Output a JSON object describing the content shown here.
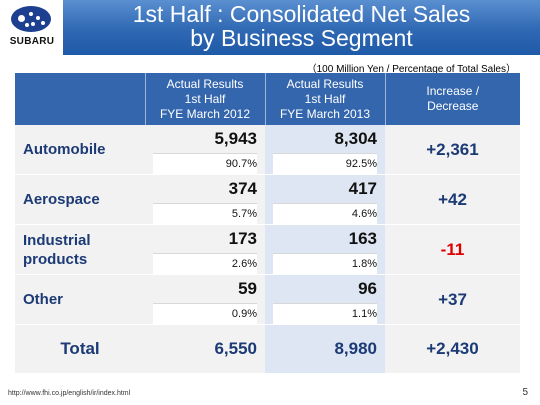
{
  "brand": {
    "logo_text": "SUBARU"
  },
  "title": {
    "line1": "1st Half : Consolidated Net Sales",
    "line2": "by Business Segment"
  },
  "unit_note": "（100 Million Yen / Percentage of Total Sales）",
  "table": {
    "headers": {
      "col1": [
        "Actual Results",
        "1st Half",
        "FYE March 2012"
      ],
      "col2": [
        "Actual Results",
        "1st Half",
        "FYE March 2013"
      ],
      "col3": [
        "Increase /",
        "Decrease"
      ]
    },
    "rows": [
      {
        "label": "Automobile",
        "v2012": "5,943",
        "p2012": "90.7%",
        "v2013": "8,304",
        "p2013": "92.5%",
        "change": "+2,361"
      },
      {
        "label": "Aerospace",
        "v2012": "374",
        "p2012": "5.7%",
        "v2013": "417",
        "p2013": "4.6%",
        "change": "+42"
      },
      {
        "label_line1": "Industrial",
        "label_line2": "products",
        "v2012": "173",
        "p2012": "2.6%",
        "v2013": "163",
        "p2013": "1.8%",
        "change": "-11"
      },
      {
        "label": "Other",
        "v2012": "59",
        "p2012": "0.9%",
        "v2013": "96",
        "p2013": "1.1%",
        "change": "+37"
      }
    ],
    "total": {
      "label": "Total",
      "v2012": "6,550",
      "v2013": "8,980",
      "change": "+2,430"
    }
  },
  "colors": {
    "header_blue": "#3466ad",
    "negative": "#e00000",
    "label": "#1c3a76"
  },
  "footer": {
    "url": "http://www.fhi.co.jp/english/ir/index.html",
    "page": "5"
  }
}
